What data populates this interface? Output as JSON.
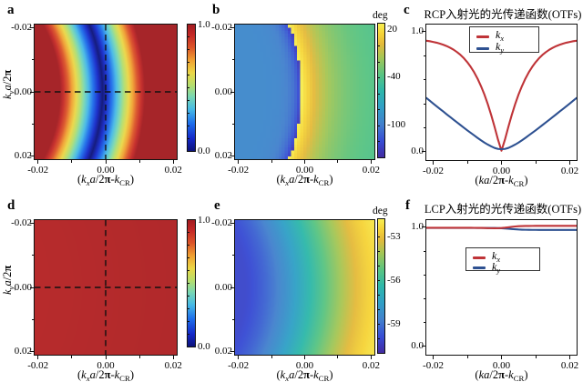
{
  "figure": {
    "background": "#ffffff",
    "series_colors": {
      "red": "#bf3438",
      "blue": "#2e5191"
    },
    "crosshair_color": "#111111",
    "panels": [
      "a",
      "b",
      "c",
      "d",
      "e",
      "f"
    ]
  },
  "labels": {
    "xlabel_heat": [
      [
        "(",
        "n"
      ],
      [
        "k",
        "i"
      ],
      [
        "x",
        "si"
      ],
      [
        "a",
        "i"
      ],
      [
        "/2",
        "n"
      ],
      [
        "π",
        "b"
      ],
      [
        "-",
        "n"
      ],
      [
        "k",
        "i"
      ],
      [
        "CR",
        "sub"
      ],
      [
        ")",
        "n"
      ]
    ],
    "xlabel_line": [
      [
        "(",
        "n"
      ],
      [
        "k",
        "i"
      ],
      [
        "a",
        "i"
      ],
      [
        "/2",
        "n"
      ],
      [
        "π",
        "b"
      ],
      [
        "-",
        "n"
      ],
      [
        "k",
        "i"
      ],
      [
        "CR",
        "sub"
      ],
      [
        ")",
        "n"
      ]
    ],
    "ylabel_heat": [
      [
        "k",
        "i"
      ],
      [
        "y",
        "si"
      ],
      [
        "a",
        "i"
      ],
      [
        "/2",
        "n"
      ],
      [
        "π",
        "b"
      ]
    ],
    "legend_kx": [
      [
        "k",
        "i"
      ],
      [
        "x",
        "si"
      ]
    ],
    "legend_ky": [
      [
        "k",
        "i"
      ],
      [
        "y",
        "si"
      ]
    ]
  },
  "chart_data": [
    {
      "id": "a",
      "letter": "a",
      "type": "heatmap",
      "colormap": "jet",
      "xlim": [
        -0.021,
        0.021
      ],
      "ylim": [
        -0.021,
        0.021
      ],
      "y_reversed": true,
      "xticks": [
        {
          "v": -0.02,
          "label": "-0.02"
        },
        {
          "v": 0.0,
          "label": "0.00"
        },
        {
          "v": 0.02,
          "label": "0.02"
        }
      ],
      "yticks": [
        {
          "v": -0.02,
          "label": "-0.02"
        },
        {
          "v": 0.0,
          "label": "0.00"
        },
        {
          "v": 0.02,
          "label": "0.02"
        }
      ],
      "xminor": [
        -0.01,
        0.01
      ],
      "yminor": [
        -0.01,
        0.01
      ],
      "has_xlabel": true,
      "has_ylabel": true,
      "crosshair": true,
      "pixelate": 0,
      "model": {
        "name": "ring",
        "cx": -0.06,
        "cy": 0,
        "r": 0.059,
        "w": 0.0125
      },
      "colorbar": {
        "vmin": 0.0,
        "vmax": 1.0,
        "ticks": [
          {
            "v": 1.0,
            "label": "1.0"
          },
          {
            "v": 0.0,
            "label": "0.0"
          }
        ],
        "minor_step": 0.1,
        "title": ""
      }
    },
    {
      "id": "b",
      "letter": "b",
      "type": "heatmap",
      "colormap": "parula",
      "xlim": [
        -0.021,
        0.021
      ],
      "ylim": [
        -0.021,
        0.021
      ],
      "y_reversed": true,
      "xticks": [
        {
          "v": -0.02,
          "label": "-0.02"
        },
        {
          "v": 0.0,
          "label": "0.00"
        },
        {
          "v": 0.02,
          "label": "0.02"
        }
      ],
      "yticks": [
        {
          "v": -0.02,
          "label": "-0.02"
        },
        {
          "v": 0.0,
          "label": "0.00"
        },
        {
          "v": 0.02,
          "label": "0.02"
        }
      ],
      "xminor": [
        -0.01,
        0.01
      ],
      "yminor": [
        -0.01,
        0.01
      ],
      "has_xlabel": true,
      "has_ylabel": false,
      "crosshair": false,
      "pixelate": 45,
      "model": {
        "name": "phase_jump",
        "cx": -0.06,
        "cy": 0,
        "r": 0.059,
        "out_peak": 27,
        "out_drop": 72,
        "out_tau": 0.009,
        "in_base": -94,
        "in_dip": 38,
        "in_tau": 0.0023
      },
      "colorbar": {
        "vmin": -141,
        "vmax": 27,
        "ticks": [
          {
            "v": 20,
            "label": "20"
          },
          {
            "v": -40,
            "label": "-40"
          },
          {
            "v": -100,
            "label": "-100"
          }
        ],
        "minor_step": 20,
        "title": "deg"
      }
    },
    {
      "id": "c",
      "letter": "c",
      "type": "line",
      "title": "RCP入射光的光传递函数(OTFs)",
      "xlim": [
        -0.022,
        0.022
      ],
      "ylim": [
        -0.07,
        1.06
      ],
      "xticks": [
        {
          "v": -0.02,
          "label": "-0.02"
        },
        {
          "v": 0.0,
          "label": "0.00"
        },
        {
          "v": 0.02,
          "label": "0.02"
        }
      ],
      "yticks": [
        {
          "v": 1.0,
          "label": "1.0"
        },
        {
          "v": 0.0,
          "label": "0.0"
        }
      ],
      "xminor": [
        -0.01,
        0.01
      ],
      "yminor": [
        0.2,
        0.4,
        0.6,
        0.8
      ],
      "has_xlabel": true,
      "legend_pos": "top",
      "series": [
        {
          "name": "kx",
          "color": "red",
          "x": [
            -0.022,
            -0.021,
            -0.02,
            -0.019,
            -0.018,
            -0.017,
            -0.016,
            -0.015,
            -0.014,
            -0.013,
            -0.012,
            -0.011,
            -0.01,
            -0.009,
            -0.008,
            -0.007,
            -0.006,
            -0.005,
            -0.004,
            -0.003,
            -0.002,
            -0.001,
            0.0,
            0.001,
            0.002,
            0.003,
            0.004,
            0.005,
            0.006,
            0.007,
            0.008,
            0.009,
            0.01,
            0.011,
            0.012,
            0.013,
            0.014,
            0.015,
            0.016,
            0.017,
            0.018,
            0.019,
            0.02,
            0.021,
            0.022
          ],
          "y": [
            0.925,
            0.921,
            0.915,
            0.909,
            0.901,
            0.891,
            0.88,
            0.866,
            0.85,
            0.83,
            0.807,
            0.779,
            0.746,
            0.707,
            0.662,
            0.609,
            0.547,
            0.477,
            0.396,
            0.305,
            0.205,
            0.099,
            0.008,
            0.099,
            0.205,
            0.305,
            0.396,
            0.477,
            0.547,
            0.609,
            0.662,
            0.707,
            0.746,
            0.779,
            0.807,
            0.83,
            0.85,
            0.866,
            0.88,
            0.891,
            0.901,
            0.909,
            0.915,
            0.921,
            0.925
          ]
        },
        {
          "name": "ky",
          "color": "blue",
          "x": [
            -0.022,
            -0.021,
            -0.02,
            -0.019,
            -0.018,
            -0.017,
            -0.016,
            -0.015,
            -0.014,
            -0.013,
            -0.012,
            -0.011,
            -0.01,
            -0.009,
            -0.008,
            -0.007,
            -0.006,
            -0.005,
            -0.004,
            -0.003,
            -0.002,
            -0.001,
            0.0,
            0.001,
            0.002,
            0.003,
            0.004,
            0.005,
            0.006,
            0.007,
            0.008,
            0.009,
            0.01,
            0.011,
            0.012,
            0.013,
            0.014,
            0.015,
            0.016,
            0.017,
            0.018,
            0.019,
            0.02,
            0.021,
            0.022
          ],
          "y": [
            0.448,
            0.425,
            0.402,
            0.379,
            0.356,
            0.334,
            0.311,
            0.289,
            0.266,
            0.244,
            0.222,
            0.2,
            0.178,
            0.157,
            0.136,
            0.115,
            0.095,
            0.076,
            0.059,
            0.044,
            0.031,
            0.023,
            0.021,
            0.023,
            0.031,
            0.044,
            0.059,
            0.076,
            0.095,
            0.115,
            0.136,
            0.157,
            0.178,
            0.2,
            0.222,
            0.244,
            0.266,
            0.289,
            0.311,
            0.334,
            0.356,
            0.379,
            0.402,
            0.425,
            0.448
          ]
        }
      ]
    },
    {
      "id": "d",
      "letter": "d",
      "type": "heatmap",
      "colormap": "jet",
      "xlim": [
        -0.021,
        0.021
      ],
      "ylim": [
        -0.021,
        0.021
      ],
      "y_reversed": true,
      "xticks": [
        {
          "v": -0.02,
          "label": "-0.02"
        },
        {
          "v": 0.0,
          "label": "0.00"
        },
        {
          "v": 0.02,
          "label": "0.02"
        }
      ],
      "yticks": [
        {
          "v": -0.02,
          "label": "-0.02"
        },
        {
          "v": 0.0,
          "label": "0.00"
        },
        {
          "v": 0.02,
          "label": "0.02"
        }
      ],
      "xminor": [
        -0.01,
        0.01
      ],
      "yminor": [
        -0.01,
        0.01
      ],
      "has_xlabel": true,
      "has_ylabel": true,
      "crosshair": true,
      "pixelate": 0,
      "model": {
        "name": "flat",
        "cx": -0.06,
        "cy": 0,
        "base": 0.958,
        "amp": 0.016,
        "d0": 0.038,
        "dspan": 0.045
      },
      "colorbar": {
        "vmin": 0.0,
        "vmax": 1.0,
        "ticks": [
          {
            "v": 1.0,
            "label": "1.0"
          },
          {
            "v": 0.0,
            "label": "0.0"
          }
        ],
        "minor_step": 0.1,
        "title": ""
      }
    },
    {
      "id": "e",
      "letter": "e",
      "type": "heatmap",
      "colormap": "parula",
      "xlim": [
        -0.021,
        0.021
      ],
      "ylim": [
        -0.021,
        0.021
      ],
      "y_reversed": true,
      "xticks": [
        {
          "v": -0.02,
          "label": "-0.02"
        },
        {
          "v": 0.0,
          "label": "0.00"
        },
        {
          "v": 0.02,
          "label": "0.02"
        }
      ],
      "yticks": [
        {
          "v": -0.02,
          "label": "-0.02"
        },
        {
          "v": 0.0,
          "label": "0.00"
        },
        {
          "v": 0.02,
          "label": "0.02"
        }
      ],
      "xminor": [
        -0.01,
        0.01
      ],
      "yminor": [
        -0.01,
        0.01
      ],
      "has_xlabel": true,
      "has_ylabel": false,
      "crosshair": false,
      "pixelate": 0,
      "model": {
        "name": "grad",
        "cx": -0.06,
        "cy": 0,
        "r": 0.059,
        "lo": -60.1,
        "hi": -52.0,
        "s0": 0.017,
        "span": 0.042,
        "smooth": 0.62
      },
      "colorbar": {
        "vmin": -61.0,
        "vmax": -51.8,
        "ticks": [
          {
            "v": -53,
            "label": "-53"
          },
          {
            "v": -56,
            "label": "-56"
          },
          {
            "v": -59,
            "label": "-59"
          }
        ],
        "minor_step": 1,
        "title": "deg"
      }
    },
    {
      "id": "f",
      "letter": "f",
      "type": "line",
      "title": "LCP入射光的光传递函数(OTFs)",
      "xlim": [
        -0.022,
        0.022
      ],
      "ylim": [
        -0.07,
        1.06
      ],
      "xticks": [
        {
          "v": -0.02,
          "label": "-0.02"
        },
        {
          "v": 0.0,
          "label": "0.00"
        },
        {
          "v": 0.02,
          "label": "0.02"
        }
      ],
      "yticks": [
        {
          "v": 1.0,
          "label": "1.0"
        },
        {
          "v": 0.0,
          "label": "0.0"
        }
      ],
      "xminor": [
        -0.01,
        0.01
      ],
      "yminor": [
        0.2,
        0.4,
        0.6,
        0.8
      ],
      "has_xlabel": true,
      "legend_pos": "middle",
      "series": [
        {
          "name": "ky",
          "color": "blue",
          "x": [
            -0.022,
            -0.021,
            -0.02,
            -0.019,
            -0.018,
            -0.017,
            -0.016,
            -0.015,
            -0.014,
            -0.013,
            -0.012,
            -0.011,
            -0.01,
            -0.009,
            -0.008,
            -0.007,
            -0.006,
            -0.005,
            -0.004,
            -0.003,
            -0.002,
            -0.001,
            0.0,
            0.001,
            0.002,
            0.003,
            0.004,
            0.005,
            0.006,
            0.007,
            0.008,
            0.009,
            0.01,
            0.011,
            0.012,
            0.013,
            0.014,
            0.015,
            0.016,
            0.017,
            0.018,
            0.019,
            0.02,
            0.021,
            0.022
          ],
          "y": [
            0.9942,
            0.9942,
            0.9942,
            0.9942,
            0.9942,
            0.9942,
            0.9942,
            0.9942,
            0.9942,
            0.9942,
            0.9942,
            0.9942,
            0.9942,
            0.9942,
            0.9942,
            0.9942,
            0.9941,
            0.9941,
            0.994,
            0.9938,
            0.9934,
            0.9928,
            0.9918,
            0.9902,
            0.988,
            0.9854,
            0.983,
            0.981,
            0.9797,
            0.9788,
            0.9783,
            0.978,
            0.9779,
            0.9778,
            0.9778,
            0.9777,
            0.9777,
            0.9777,
            0.9777,
            0.9777,
            0.9777,
            0.9777,
            0.9777,
            0.9777,
            0.9777
          ]
        },
        {
          "name": "kx",
          "color": "red",
          "x": [
            -0.022,
            -0.021,
            -0.02,
            -0.019,
            -0.018,
            -0.017,
            -0.016,
            -0.015,
            -0.014,
            -0.013,
            -0.012,
            -0.011,
            -0.01,
            -0.009,
            -0.008,
            -0.007,
            -0.006,
            -0.005,
            -0.004,
            -0.003,
            -0.002,
            -0.001,
            0.0,
            0.001,
            0.002,
            0.003,
            0.004,
            0.005,
            0.006,
            0.007,
            0.008,
            0.009,
            0.01,
            0.011,
            0.012,
            0.013,
            0.014,
            0.015,
            0.016,
            0.017,
            0.018,
            0.019,
            0.02,
            0.021,
            0.022
          ],
          "y": [
            0.9952,
            0.9952,
            0.9952,
            0.9952,
            0.9952,
            0.9952,
            0.9952,
            0.9952,
            0.9952,
            0.9952,
            0.9952,
            0.9952,
            0.9952,
            0.9952,
            0.9951,
            0.9949,
            0.9945,
            0.9938,
            0.993,
            0.9922,
            0.9918,
            0.9922,
            0.9938,
            0.9965,
            1.0,
            1.0036,
            1.0066,
            1.0087,
            1.01,
            1.0108,
            1.0112,
            1.0114,
            1.0115,
            1.0116,
            1.0116,
            1.0116,
            1.0116,
            1.0116,
            1.0116,
            1.0116,
            1.0116,
            1.0116,
            1.0116,
            1.0116,
            1.0116
          ]
        }
      ]
    }
  ]
}
